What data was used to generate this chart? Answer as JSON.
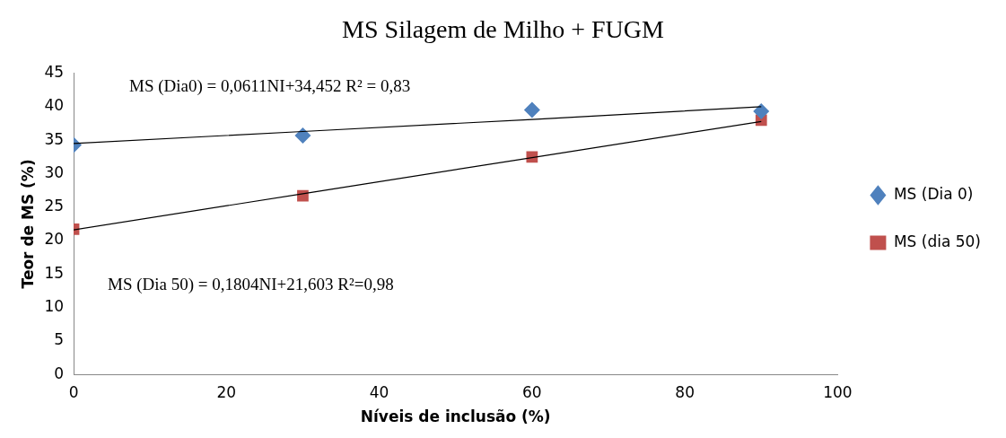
{
  "chart_data": {
    "type": "scatter",
    "title": "MS Silagem de Milho + FUGM",
    "xlabel": "Níveis de inclusão (%)",
    "ylabel": "Teor de MS (%)",
    "x": [
      0,
      30,
      60,
      90
    ],
    "series": [
      {
        "name": "MS (Dia 0)",
        "color": "#4f81bd",
        "marker": "diamond",
        "values": [
          34.3,
          35.7,
          39.5,
          39.3
        ]
      },
      {
        "name": "MS (dia 50)",
        "color": "#c0504d",
        "marker": "square",
        "values": [
          21.7,
          26.7,
          32.5,
          38.0
        ]
      },
      {
        "type": "line",
        "color": "#000000",
        "marker": "none",
        "values": [
          34.5,
          36.3,
          38.1,
          40.0
        ]
      },
      {
        "type": "line",
        "color": "#000000",
        "marker": "none",
        "values": [
          21.6,
          27.0,
          32.4,
          37.8
        ]
      }
    ],
    "xlim": [
      0,
      100
    ],
    "xticks": [
      0,
      20,
      40,
      60,
      80,
      100
    ],
    "ylim": [
      0,
      45
    ],
    "yticks": [
      0,
      5,
      10,
      15,
      20,
      25,
      30,
      35,
      40,
      45
    ],
    "grid": false,
    "legend": "right",
    "annotations": [
      "MS (Dia0) = 0,0611NI+34,452 R² = 0,83",
      "MS (Dia 50) = 0,1804NI+21,603 R²=0,98"
    ]
  }
}
